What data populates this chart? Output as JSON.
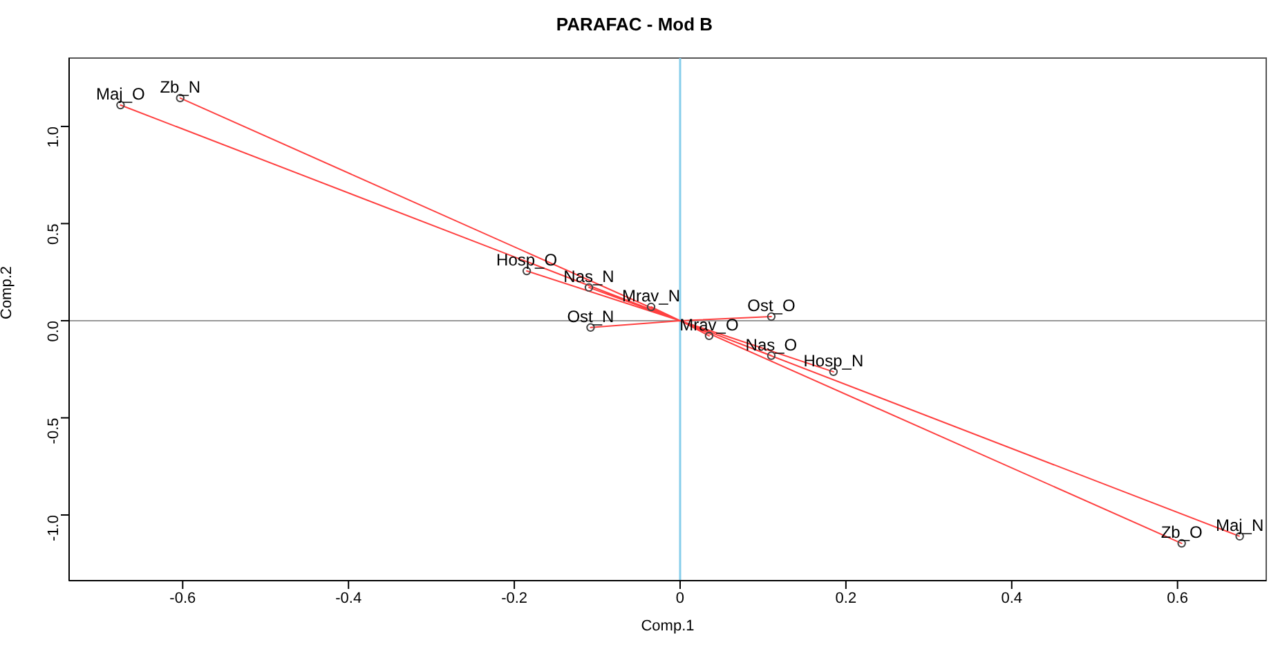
{
  "chart_data": {
    "type": "scatter",
    "title": "PARAFAC - Mod B",
    "xlabel": "Comp.1",
    "ylabel": "Comp.2",
    "xlim": [
      -0.737,
      0.707
    ],
    "ylim": [
      -1.338,
      1.352
    ],
    "xticks": [
      -0.6,
      -0.4,
      -0.2,
      0.0,
      0.2,
      0.4,
      0.6
    ],
    "yticks": [
      {
        "value": -1,
        "label": "-1.0"
      },
      {
        "value": -0.5,
        "label": "-0.5"
      },
      {
        "value": 0,
        "label": "0.0"
      },
      {
        "value": 0.5,
        "label": "0.5"
      },
      {
        "value": 1,
        "label": "1.0"
      }
    ],
    "grid": false,
    "legend": false,
    "marker": "circle",
    "series": [
      {
        "color": "#444444",
        "x": [
          -0.675,
          -0.603,
          -0.185,
          -0.11,
          -0.035,
          -0.108,
          0.11,
          0.035,
          0.11,
          0.185,
          0.605,
          0.675
        ],
        "values": [
          1.11,
          1.146,
          0.256,
          0.171,
          0.071,
          -0.035,
          0.021,
          -0.078,
          -0.18,
          -0.263,
          -1.146,
          -1.11
        ]
      },
      {
        "type": "line",
        "color": "#ff4040",
        "marker": "none",
        "x": [
          0,
          -0.675,
          0,
          -0.603,
          0,
          -0.185,
          0,
          -0.11,
          0,
          -0.035,
          0,
          -0.108,
          0,
          0.11,
          0,
          0.035,
          0,
          0.11,
          0,
          0.185,
          0,
          0.605,
          0,
          0.675
        ],
        "values": [
          0,
          1.11,
          0,
          1.146,
          0,
          0.256,
          0,
          0.171,
          0,
          0.071,
          0,
          -0.035,
          0,
          0.021,
          0,
          -0.078,
          0,
          -0.18,
          0,
          -0.263,
          0,
          -1.146,
          0,
          -1.11
        ]
      }
    ],
    "ref_lines": [
      {
        "axis": "x",
        "value": 0,
        "color": "#87ceeb"
      },
      {
        "axis": "y",
        "value": 0,
        "color": "#999999"
      }
    ],
    "annotations": [
      {
        "text": "Maj_O",
        "x": -0.675,
        "y": 1.11
      },
      {
        "text": "Zb_N",
        "x": -0.603,
        "y": 1.146
      },
      {
        "text": "Hosp_O",
        "x": -0.185,
        "y": 0.256
      },
      {
        "text": "Nas_N",
        "x": -0.11,
        "y": 0.171
      },
      {
        "text": "Mrav_N",
        "x": -0.035,
        "y": 0.071
      },
      {
        "text": "Ost_N",
        "x": -0.108,
        "y": -0.035
      },
      {
        "text": "Ost_O",
        "x": 0.11,
        "y": 0.021
      },
      {
        "text": "Mrav_O",
        "x": 0.035,
        "y": -0.078
      },
      {
        "text": "Nas_O",
        "x": 0.11,
        "y": -0.18
      },
      {
        "text": "Hosp_N",
        "x": 0.185,
        "y": -0.263
      },
      {
        "text": "Zb_O",
        "x": 0.605,
        "y": -1.146
      },
      {
        "text": "Maj_N",
        "x": 0.675,
        "y": -1.11
      }
    ]
  }
}
